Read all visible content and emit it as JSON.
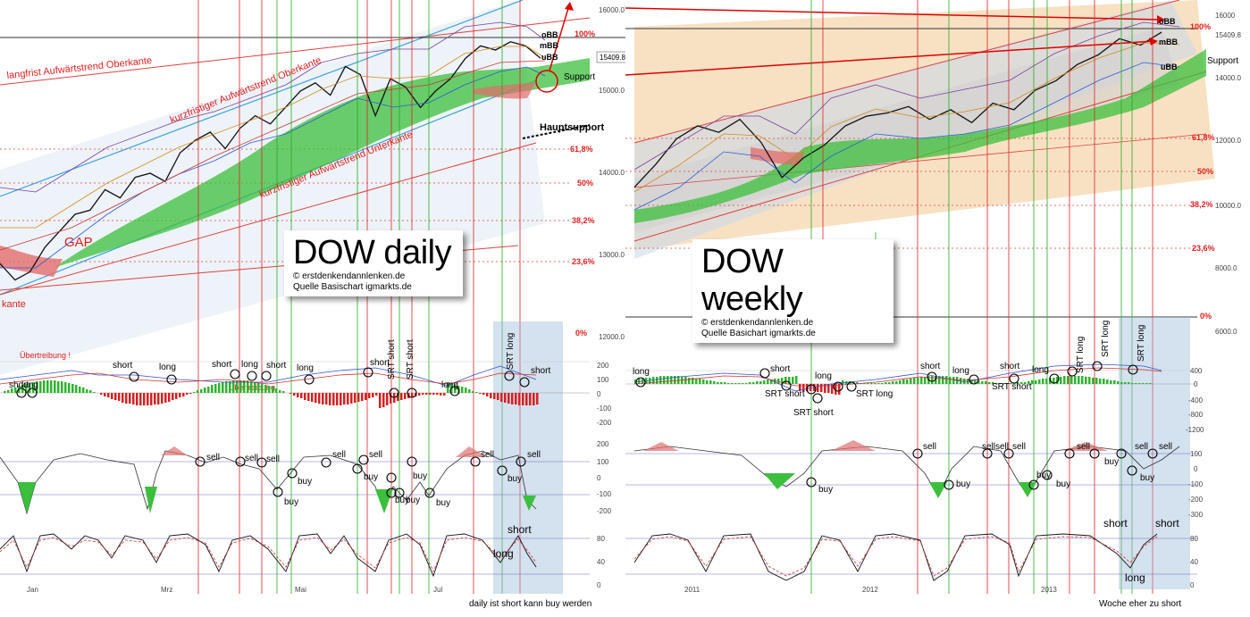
{
  "chart_data": [
    {
      "type": "line",
      "title": "DOW daily",
      "credit": "© erstdenkendannlenken.de",
      "source": "Quelle Basischart igmarkts.de",
      "footer": "daily ist short kann buy werden",
      "price_axis": [
        "16000.0",
        "15000.0",
        "14000.0",
        "13000.0",
        "12000.0"
      ],
      "current_price": "15409.8",
      "fib_levels": [
        "100%",
        "61,8%",
        "50%",
        "38,2%",
        "23,6%",
        "0%"
      ],
      "band_labels": [
        "oBB",
        "mBB",
        "uBB"
      ],
      "annotations": [
        "langfrist Aufwärtstrend Oberkante",
        "kurzfristiger Aufwärtstrend Oberkante",
        "kurzfristiger Aufwärtstrend Unterkante",
        "GAP",
        "Support",
        "Hauptsupport",
        "kante",
        "Übertreibung !",
        "Übertreibung"
      ],
      "x_ticks": [
        "Jan",
        "Mrz",
        "Mai",
        "Jul"
      ],
      "osc1_axis": [
        "200",
        "100",
        "0",
        "-100",
        "-200"
      ],
      "osc2_axis": [
        "200",
        "100",
        "0",
        "-100",
        "-200"
      ],
      "osc3_axis": [
        "80",
        "40",
        "0"
      ],
      "osc1_signals": [
        "short",
        "long",
        "short",
        "long",
        "short",
        "long",
        "short",
        "short",
        "SRT short",
        "SRT short",
        "long",
        "SRT long",
        "short",
        "short",
        "long"
      ],
      "osc2_signals": [
        "sell",
        "sell",
        "sell",
        "buy",
        "buy",
        "sell",
        "sell",
        "buy",
        "buy",
        "buy",
        "buy",
        "buy",
        "sell",
        "sell",
        "buy"
      ],
      "osc3_signals": [
        "short",
        "long"
      ],
      "prices": [
        12900,
        12700,
        12800,
        13100,
        13300,
        13500,
        13550,
        13800,
        13700,
        13950,
        14000,
        13900,
        14250,
        14400,
        14500,
        14300,
        14550,
        14700,
        14600,
        14800,
        15000,
        15100,
        14950,
        15300,
        15200,
        14700,
        15150,
        15050,
        14800,
        15000,
        15150,
        15400,
        15550,
        15500,
        15600,
        15550,
        15400
      ]
    },
    {
      "type": "line",
      "title": "DOW weekly",
      "credit": "© erstdenkendannlenken.de",
      "source": "Quelle Basichart igmarkts.de",
      "footer": "Woche eher zu short",
      "price_axis": [
        "16000",
        "15409.8",
        "14000.0",
        "12000.0",
        "10000.0",
        "8000.0",
        "6000.0"
      ],
      "fib_levels": [
        "100%",
        "61,8%",
        "50%",
        "38,2%",
        "23,6%",
        "0%"
      ],
      "band_labels": [
        "oBB",
        "mBB",
        "uBB"
      ],
      "annotations": [
        "Support"
      ],
      "x_ticks": [
        "2011",
        "2012",
        "2013"
      ],
      "osc1_axis": [
        "400",
        "0",
        "-400",
        "-800",
        "-1200"
      ],
      "osc2_axis": [
        "100",
        "0",
        "-100",
        "-200",
        "-300"
      ],
      "osc3_axis": [
        "80",
        "40",
        "0"
      ],
      "osc1_signals": [
        "long",
        "short",
        "long",
        "SRT short",
        "SRT short",
        "SRT long",
        "short",
        "long",
        "short",
        "SRT short",
        "long",
        "SRT long",
        "SRT long",
        "SRT long"
      ],
      "osc2_signals": [
        "sell",
        "sell",
        "sell",
        "sell",
        "sell",
        "sell",
        "sell",
        "buy",
        "buy",
        "buy",
        "buy",
        "buy",
        "buy"
      ],
      "osc3_signals": [
        "short",
        "short",
        "long"
      ],
      "prices": [
        10700,
        11400,
        12200,
        12600,
        12400,
        12800,
        12100,
        11000,
        11600,
        12000,
        12600,
        12900,
        13000,
        13200,
        12800,
        13100,
        12700,
        13300,
        13100,
        13700,
        14000,
        14500,
        14800,
        15300,
        15100,
        15500
      ]
    }
  ]
}
